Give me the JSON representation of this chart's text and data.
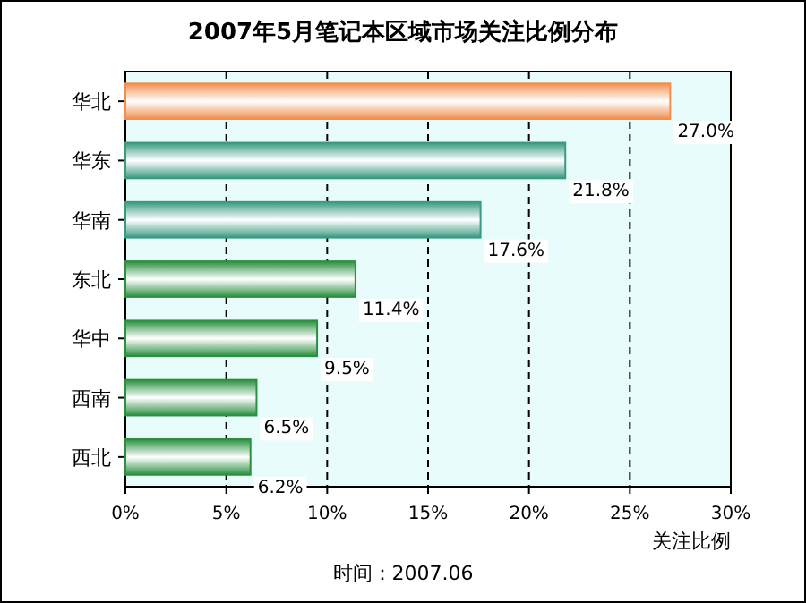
{
  "chart_data": {
    "type": "bar",
    "orientation": "horizontal",
    "title": "2007年5月笔记本区域市场关注比例分布",
    "xlabel": "关注比例",
    "categories": [
      "华北",
      "华东",
      "华南",
      "东北",
      "华中",
      "西南",
      "西北"
    ],
    "values": [
      27.0,
      21.8,
      17.6,
      11.4,
      9.5,
      6.5,
      6.2
    ],
    "value_labels": [
      "27.0%",
      "21.8%",
      "17.6%",
      "11.4%",
      "9.5%",
      "6.5%",
      "6.2%"
    ],
    "colors": [
      "#f09050",
      "#3a9a80",
      "#3a9a80",
      "#2a9040",
      "#2a9040",
      "#2a9040",
      "#2a9040"
    ],
    "xlim": [
      0,
      30
    ],
    "xticks": [
      {
        "value": 0,
        "label": "0%"
      },
      {
        "value": 5,
        "label": "5%"
      },
      {
        "value": 10,
        "label": "10%"
      },
      {
        "value": 15,
        "label": "15%"
      },
      {
        "value": 20,
        "label": "20%"
      },
      {
        "value": 25,
        "label": "25%"
      },
      {
        "value": 30,
        "label": "30%"
      }
    ],
    "grid": "x",
    "annotations": [
      "时间：2007.06"
    ]
  }
}
